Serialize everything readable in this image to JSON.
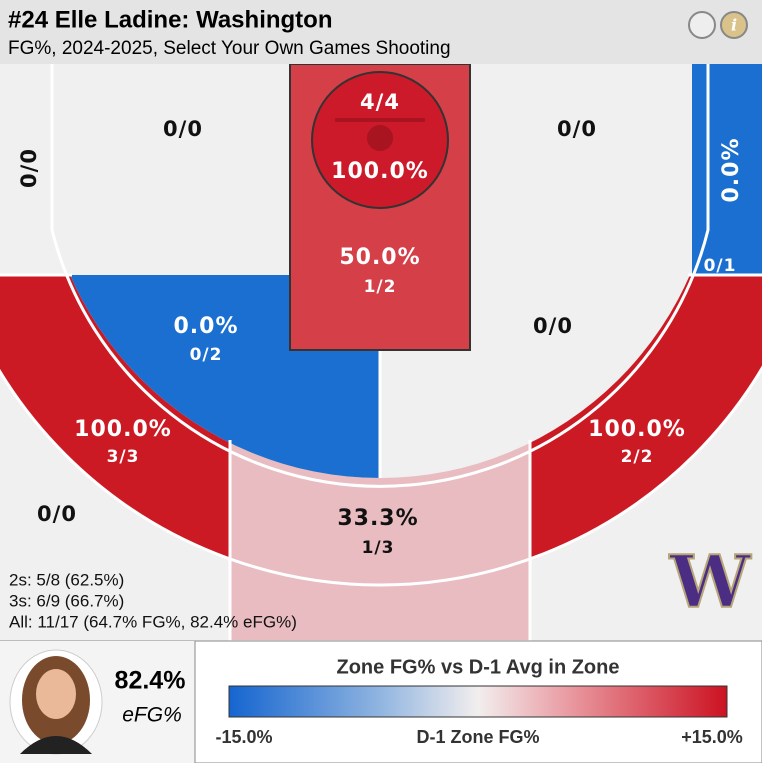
{
  "header": {
    "title": "#24 Elle Ladine: Washington",
    "subtitle": "FG%, 2024-2025, Select Your Own Games Shooting"
  },
  "zones": [
    {
      "made": "0/0"
    },
    {
      "made": "0/0"
    },
    {
      "made": "0/0"
    },
    {
      "pct": "0.0%",
      "made": "0/1"
    },
    {
      "pct": "100.0%",
      "made": "4/4"
    },
    {
      "pct": "50.0%",
      "made": "1/2"
    },
    {
      "pct": "0.0%",
      "made": "0/2"
    },
    {
      "made": "0/0"
    },
    {
      "pct": "100.0%",
      "made": "3/3"
    },
    {
      "pct": "100.0%",
      "made": "2/2"
    },
    {
      "pct": "33.3%",
      "made": "1/3"
    },
    {
      "made": "0/0"
    }
  ],
  "summary": [
    "2s: 5/8 (62.5%)",
    "3s: 6/9 (66.7%)",
    "All: 11/17 (64.7% FG%, 82.4% eFG%)"
  ],
  "logo": "W",
  "player": {
    "efg": "82.4%",
    "efg_label": "eFG%"
  },
  "legend": {
    "title": "Zone FG% vs D-1 Avg in Zone",
    "min": "-15.0%",
    "mid": "D-1 Zone FG%",
    "max": "+15.0%"
  }
}
